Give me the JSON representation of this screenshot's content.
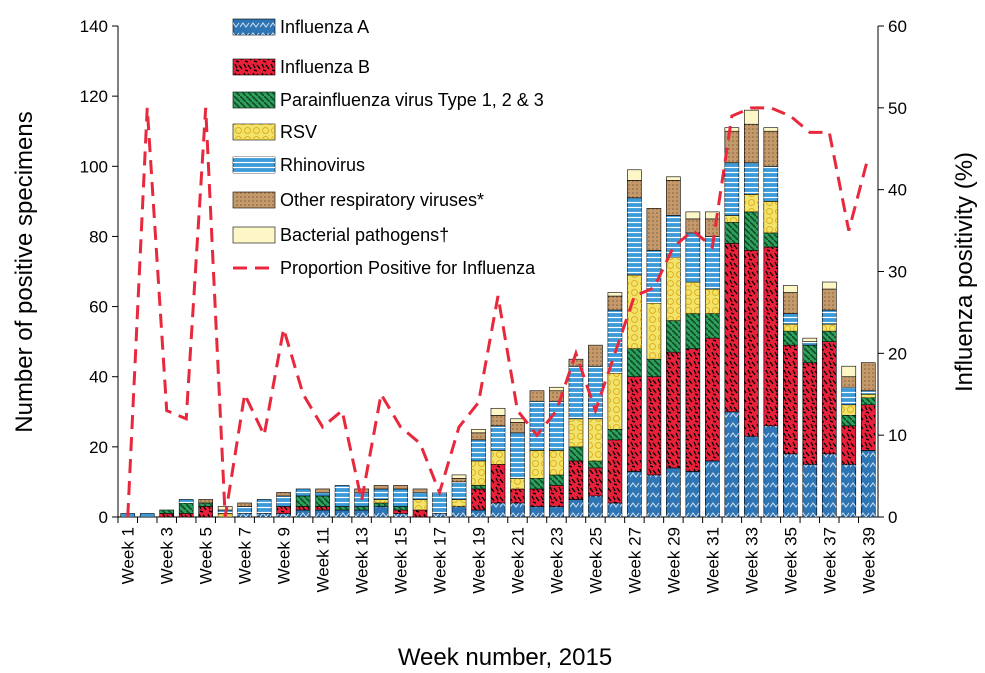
{
  "chart_data": {
    "type": "stacked-bar",
    "x_label": "Week number, 2015",
    "y_label": "Number of positive specimens",
    "y2_label": "Influenza positivity (%)",
    "categories": [
      "Week 1",
      null,
      "Week 3",
      null,
      "Week 5",
      null,
      "Week 7",
      null,
      "Week 9",
      null,
      "Week 11",
      null,
      "Week 13",
      null,
      "Week 15",
      null,
      "Week 17",
      null,
      "Week 19",
      null,
      "Week 21",
      null,
      "Week 23",
      null,
      "Week 25",
      null,
      "Week 27",
      null,
      "Week 29",
      null,
      "Week 31",
      null,
      "Week 33",
      null,
      "Week 35",
      null,
      "Week 37",
      null,
      "Week 39"
    ],
    "series": [
      {
        "name": "Influenza A",
        "color": "#2e75b6",
        "values": [
          0,
          0,
          0,
          0,
          0,
          0,
          1,
          1,
          1,
          2,
          2,
          2,
          2,
          3,
          1,
          0,
          1,
          3,
          2,
          4,
          4,
          3,
          3,
          5,
          6,
          4,
          13,
          12,
          14,
          13,
          16,
          30,
          23,
          26,
          18,
          15,
          18,
          15,
          19
        ]
      },
      {
        "name": "Influenza B",
        "color": "#e8203a",
        "values": [
          0,
          0,
          1,
          1,
          3,
          0,
          0,
          0,
          2,
          1,
          1,
          0,
          0,
          0,
          1,
          2,
          0,
          0,
          6,
          11,
          4,
          5,
          6,
          11,
          8,
          18,
          27,
          28,
          33,
          35,
          35,
          48,
          53,
          51,
          31,
          29,
          32,
          11,
          13
        ]
      },
      {
        "name": "Parainfluenza virus Type 1, 2 & 3",
        "color": "#2e9e5b",
        "values": [
          0,
          0,
          1,
          3,
          1,
          0,
          0,
          0,
          0,
          3,
          3,
          1,
          1,
          1,
          1,
          0,
          0,
          0,
          1,
          0,
          0,
          3,
          3,
          4,
          2,
          3,
          8,
          5,
          9,
          10,
          7,
          6,
          11,
          4,
          4,
          5,
          3,
          3,
          2
        ]
      },
      {
        "name": "RSV",
        "color": "#f2e46a",
        "values": [
          0,
          0,
          0,
          0,
          0,
          1,
          0,
          0,
          0,
          0,
          0,
          0,
          0,
          1,
          0,
          3,
          0,
          2,
          7,
          4,
          3,
          8,
          7,
          8,
          12,
          16,
          21,
          16,
          18,
          9,
          7,
          2,
          5,
          9,
          2,
          0,
          2,
          3,
          1
        ]
      },
      {
        "name": "Rhinovirus",
        "color": "#3d9ad9",
        "values": [
          1,
          1,
          0,
          1,
          0,
          1,
          2,
          4,
          3,
          2,
          1,
          6,
          4,
          3,
          5,
          2,
          6,
          5,
          6,
          7,
          13,
          14,
          14,
          15,
          15,
          18,
          22,
          15,
          12,
          14,
          15,
          15,
          9,
          10,
          3,
          1,
          4,
          5,
          1
        ]
      },
      {
        "name": "Other respiratory viruses*",
        "color": "#c49a6c",
        "values": [
          0,
          0,
          0,
          0,
          1,
          0,
          1,
          0,
          1,
          0,
          1,
          0,
          1,
          1,
          1,
          1,
          0,
          1,
          2,
          3,
          3,
          3,
          3,
          2,
          6,
          4,
          5,
          12,
          10,
          4,
          5,
          9,
          11,
          10,
          6,
          0,
          6,
          3,
          8
        ]
      },
      {
        "name": "Bacterial pathogens†",
        "color": "#fdf7c8",
        "values": [
          0,
          0,
          0,
          0,
          0,
          1,
          0,
          0,
          0,
          0,
          0,
          0,
          0,
          0,
          0,
          0,
          0,
          1,
          1,
          2,
          1,
          0,
          1,
          0,
          0,
          1,
          3,
          0,
          1,
          2,
          2,
          1,
          4,
          1,
          2,
          1,
          2,
          3,
          0
        ]
      },
      {
        "name": "Proportion Positive for Influenza",
        "color": "#e8283c",
        "axis": "y2",
        "type": "line",
        "values": [
          0,
          50,
          13,
          12,
          50,
          0,
          15,
          10,
          23,
          15,
          11,
          13,
          2,
          15,
          11,
          9,
          3,
          11,
          14,
          27,
          13,
          10,
          13,
          20,
          13,
          20,
          27,
          28,
          33,
          35,
          33,
          49,
          50,
          50,
          49,
          47,
          47,
          35,
          44
        ]
      }
    ],
    "ylim": [
      0,
      140
    ],
    "yticks": [
      0,
      20,
      40,
      60,
      80,
      100,
      120,
      140
    ],
    "y2lim": [
      0,
      60
    ],
    "y2ticks": [
      0,
      10,
      20,
      30,
      40,
      50,
      60
    ]
  }
}
